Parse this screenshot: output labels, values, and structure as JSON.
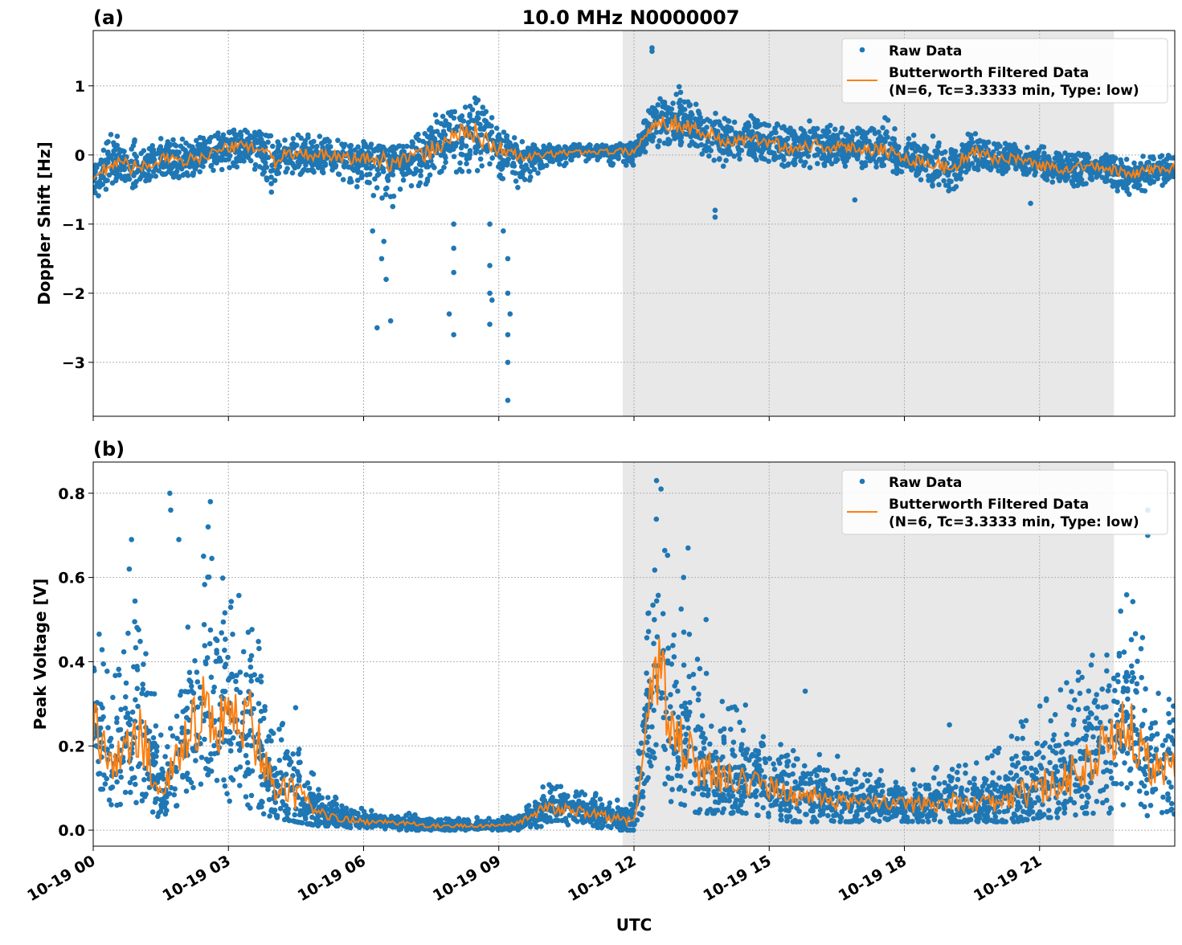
{
  "chart_data": [
    {
      "type": "scatter",
      "panel_label": "(a)",
      "title": "10.0 MHz N0000007",
      "xlabel": "",
      "ylabel": "Doppler Shift [Hz]",
      "xlim_hours": [
        0,
        24
      ],
      "ylim": [
        -3.78,
        1.8
      ],
      "yticks": [
        1,
        0,
        -1,
        -2,
        -3
      ],
      "ytick_labels": [
        "1",
        "0",
        "−1",
        "−2",
        "−3"
      ],
      "grid": true,
      "legend_placement": "top-right",
      "shaded_region_hours": [
        11.75,
        22.65
      ],
      "colors": {
        "raw": "#1f77b4",
        "filtered": "#ff7f0e",
        "shade": "#e8e8e8"
      },
      "legend": {
        "raw": "Raw Data",
        "filtered_line1": "Butterworth Filtered Data",
        "filtered_line2": "(N=6, Tc=3.3333 min, Type: low)"
      },
      "series": [
        {
          "name": "Butterworth Filtered Data",
          "x_hours": [
            0,
            0.5,
            1,
            1.5,
            2,
            2.5,
            3,
            3.5,
            4,
            4.5,
            5,
            5.5,
            6,
            6.5,
            7,
            7.5,
            8,
            8.5,
            9,
            9.5,
            10,
            10.5,
            11,
            11.5,
            12,
            12.5,
            13,
            13.5,
            14,
            14.5,
            15,
            15.5,
            16,
            16.5,
            17,
            17.5,
            18,
            18.5,
            19,
            19.5,
            20,
            20.5,
            21,
            21.5,
            22,
            22.5,
            23,
            23.5,
            24
          ],
          "values": [
            -0.35,
            -0.1,
            -0.2,
            -0.05,
            -0.1,
            0.0,
            0.1,
            0.15,
            -0.05,
            0.0,
            0.0,
            -0.05,
            -0.05,
            -0.1,
            -0.05,
            0.05,
            0.3,
            0.3,
            0.1,
            -0.05,
            0.0,
            0.03,
            0.05,
            0.05,
            0.05,
            0.5,
            0.45,
            0.35,
            0.2,
            0.2,
            0.2,
            0.1,
            0.15,
            0.1,
            0.1,
            0.1,
            -0.05,
            -0.1,
            -0.2,
            0.05,
            -0.05,
            -0.05,
            -0.15,
            -0.2,
            -0.15,
            -0.2,
            -0.3,
            -0.2,
            -0.2
          ]
        },
        {
          "name": "Raw Data",
          "x_hours_bins": "same as filtered",
          "low": [
            -0.7,
            -0.4,
            -0.5,
            -0.3,
            -0.35,
            -0.3,
            -0.2,
            -0.2,
            -0.6,
            -0.3,
            -0.25,
            -0.4,
            -0.5,
            -0.9,
            -0.5,
            -0.4,
            -0.3,
            -0.3,
            -0.4,
            -0.5,
            -0.2,
            -0.15,
            -0.1,
            -0.15,
            -0.15,
            0.1,
            0.1,
            0.0,
            -0.2,
            -0.1,
            -0.1,
            -0.2,
            -0.2,
            -0.2,
            -0.2,
            -0.2,
            -0.3,
            -0.4,
            -0.6,
            -0.2,
            -0.3,
            -0.3,
            -0.4,
            -0.45,
            -0.45,
            -0.5,
            -0.6,
            -0.5,
            -0.4
          ],
          "high": [
            0.1,
            0.35,
            0.2,
            0.25,
            0.25,
            0.3,
            0.35,
            0.4,
            0.3,
            0.3,
            0.3,
            0.2,
            0.2,
            0.1,
            0.15,
            0.6,
            0.7,
            0.85,
            0.4,
            0.2,
            0.15,
            0.15,
            0.15,
            0.15,
            0.2,
            0.9,
            1.0,
            0.7,
            0.6,
            0.6,
            0.5,
            0.5,
            0.5,
            0.4,
            0.4,
            0.6,
            0.3,
            0.3,
            0.2,
            0.4,
            0.25,
            0.15,
            0.15,
            0.05,
            0.05,
            0.0,
            -0.05,
            0.05,
            0.05
          ],
          "outliers": [
            [
              6.3,
              -2.5
            ],
            [
              6.5,
              -1.8
            ],
            [
              6.6,
              -2.4
            ],
            [
              6.2,
              -1.1
            ],
            [
              6.4,
              -1.5
            ],
            [
              6.45,
              -1.25
            ],
            [
              7.9,
              -2.3
            ],
            [
              8.0,
              -2.6
            ],
            [
              8.0,
              -1.7
            ],
            [
              8.0,
              -1.0
            ],
            [
              8.0,
              -1.35
            ],
            [
              8.8,
              -2.45
            ],
            [
              8.8,
              -2.0
            ],
            [
              8.8,
              -1.6
            ],
            [
              8.8,
              -1.0
            ],
            [
              8.85,
              -2.1
            ],
            [
              9.1,
              -1.1
            ],
            [
              9.2,
              -3.55
            ],
            [
              9.2,
              -3.0
            ],
            [
              9.2,
              -2.6
            ],
            [
              9.2,
              -2.0
            ],
            [
              9.2,
              -1.5
            ],
            [
              9.25,
              -2.3
            ],
            [
              12.4,
              1.5
            ],
            [
              12.4,
              1.55
            ],
            [
              13.8,
              -0.8
            ],
            [
              13.8,
              -0.9
            ],
            [
              16.9,
              -0.65
            ],
            [
              20.8,
              -0.7
            ]
          ]
        }
      ]
    },
    {
      "type": "scatter",
      "panel_label": "(b)",
      "xlabel": "UTC",
      "ylabel": "Peak Voltage [V]",
      "xlim_hours": [
        0,
        24
      ],
      "ylim": [
        -0.038,
        0.874
      ],
      "yticks": [
        0.0,
        0.2,
        0.4,
        0.6,
        0.8
      ],
      "ytick_labels": [
        "0.0",
        "0.2",
        "0.4",
        "0.6",
        "0.8"
      ],
      "xticks_hours": [
        0,
        3,
        6,
        9,
        12,
        15,
        18,
        21
      ],
      "xtick_labels": [
        "10-19 00",
        "10-19 03",
        "10-19 06",
        "10-19 09",
        "10-19 12",
        "10-19 15",
        "10-19 18",
        "10-19 21"
      ],
      "grid": true,
      "legend_placement": "top-right",
      "shaded_region_hours": [
        11.75,
        22.65
      ],
      "legend": {
        "raw": "Raw Data",
        "filtered_line1": "Butterworth Filtered Data",
        "filtered_line2": "(N=6, Tc=3.3333 min, Type: low)"
      },
      "series": [
        {
          "name": "Butterworth Filtered Data",
          "x_hours": [
            0,
            0.5,
            1,
            1.5,
            2,
            2.5,
            3,
            3.5,
            4,
            4.5,
            5,
            5.5,
            6,
            6.5,
            7,
            7.5,
            8,
            8.5,
            9,
            9.5,
            10,
            10.5,
            11,
            11.5,
            12,
            12.5,
            13,
            13.5,
            14,
            14.5,
            15,
            15.5,
            16,
            16.5,
            17,
            17.5,
            18,
            18.5,
            19,
            19.5,
            20,
            20.5,
            21,
            21.5,
            22,
            22.5,
            23,
            23.5,
            24
          ],
          "values": [
            0.25,
            0.15,
            0.25,
            0.08,
            0.2,
            0.3,
            0.25,
            0.25,
            0.1,
            0.08,
            0.04,
            0.03,
            0.02,
            0.02,
            0.015,
            0.01,
            0.01,
            0.01,
            0.01,
            0.02,
            0.05,
            0.05,
            0.04,
            0.03,
            0.02,
            0.4,
            0.2,
            0.15,
            0.12,
            0.12,
            0.1,
            0.08,
            0.08,
            0.07,
            0.06,
            0.07,
            0.06,
            0.06,
            0.07,
            0.06,
            0.07,
            0.08,
            0.1,
            0.12,
            0.15,
            0.2,
            0.25,
            0.15,
            0.15
          ]
        },
        {
          "name": "Raw Data",
          "x_hours_bins": "same as filtered",
          "low": [
            0.08,
            0.05,
            0.05,
            0.03,
            0.07,
            0.08,
            0.07,
            0.05,
            0.03,
            0.02,
            0.01,
            0.01,
            0.0,
            0.0,
            0.0,
            0.0,
            0.0,
            0.0,
            0.0,
            0.0,
            0.01,
            0.01,
            0.01,
            0.0,
            0.0,
            0.1,
            0.05,
            0.04,
            0.04,
            0.04,
            0.03,
            0.02,
            0.02,
            0.02,
            0.02,
            0.02,
            0.02,
            0.02,
            0.02,
            0.02,
            0.02,
            0.02,
            0.03,
            0.03,
            0.04,
            0.04,
            0.05,
            0.03,
            0.03
          ],
          "high": [
            0.5,
            0.38,
            0.6,
            0.25,
            0.45,
            0.7,
            0.6,
            0.6,
            0.25,
            0.3,
            0.1,
            0.08,
            0.05,
            0.04,
            0.04,
            0.03,
            0.03,
            0.03,
            0.03,
            0.04,
            0.12,
            0.1,
            0.1,
            0.08,
            0.06,
            0.8,
            0.55,
            0.4,
            0.3,
            0.3,
            0.25,
            0.2,
            0.2,
            0.18,
            0.15,
            0.15,
            0.15,
            0.15,
            0.18,
            0.15,
            0.2,
            0.25,
            0.3,
            0.35,
            0.4,
            0.45,
            0.6,
            0.35,
            0.3
          ],
          "outliers": [
            [
              0.85,
              0.69
            ],
            [
              0.8,
              0.62
            ],
            [
              1.7,
              0.8
            ],
            [
              1.72,
              0.76
            ],
            [
              1.9,
              0.69
            ],
            [
              2.6,
              0.78
            ],
            [
              2.55,
              0.72
            ],
            [
              12.5,
              0.83
            ],
            [
              12.6,
              0.81
            ],
            [
              13.2,
              0.67
            ],
            [
              13.1,
              0.6
            ],
            [
              13.6,
              0.5
            ],
            [
              23.4,
              0.76
            ],
            [
              23.4,
              0.7
            ],
            [
              21.6,
              0.35
            ],
            [
              15.8,
              0.33
            ],
            [
              20.7,
              0.26
            ],
            [
              22.8,
              0.52
            ],
            [
              19.0,
              0.25
            ]
          ]
        }
      ]
    }
  ]
}
